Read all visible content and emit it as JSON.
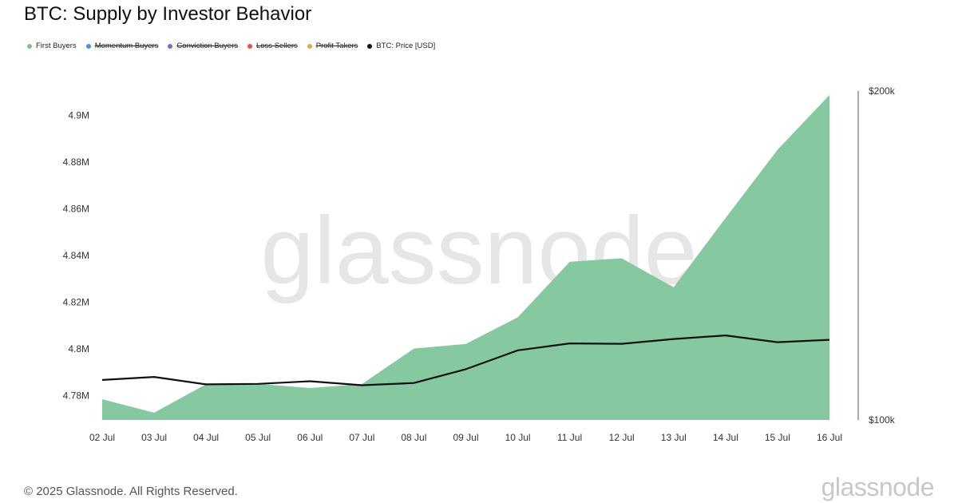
{
  "title": "BTC: Supply by Investor Behavior",
  "legend": [
    {
      "label": "First Buyers",
      "color": "#7cc28f",
      "hidden": false
    },
    {
      "label": "Momentum Buyers",
      "color": "#4a8fe0",
      "hidden": true
    },
    {
      "label": "Conviction Buyers",
      "color": "#7a68d8",
      "hidden": true
    },
    {
      "label": "Loss Sellers",
      "color": "#e0524a",
      "hidden": true
    },
    {
      "label": "Profit Takers",
      "color": "#e6a83a",
      "hidden": true
    },
    {
      "label": "BTC: Price [USD]",
      "color": "#111111",
      "hidden": false
    }
  ],
  "watermark": "glassnode",
  "footer": {
    "copyright": "© 2025 Glassnode. All Rights Reserved.",
    "logo": "glassnode"
  },
  "chart_data": {
    "type": "area",
    "categories": [
      "02 Jul",
      "03 Jul",
      "04 Jul",
      "05 Jul",
      "06 Jul",
      "07 Jul",
      "08 Jul",
      "09 Jul",
      "10 Jul",
      "11 Jul",
      "12 Jul",
      "13 Jul",
      "14 Jul",
      "15 Jul",
      "16 Jul"
    ],
    "series": [
      {
        "name": "First Buyers",
        "axis": "left",
        "type": "area",
        "color": "#86c8a0",
        "values": [
          4.7784,
          4.7726,
          4.7848,
          4.785,
          4.7832,
          4.7849,
          4.8001,
          4.8021,
          4.8135,
          4.8373,
          4.8388,
          4.8264,
          4.8561,
          4.8853,
          4.9088
        ]
      },
      {
        "name": "BTC: Price [USD]",
        "axis": "right",
        "type": "line",
        "color": "#111111",
        "values": [
          108800,
          109500,
          107800,
          107900,
          108500,
          107600,
          108100,
          111300,
          115800,
          117500,
          117400,
          118600,
          119500,
          117800,
          118400
        ]
      }
    ],
    "y_left": {
      "ticks": [
        "4.78M",
        "4.8M",
        "4.82M",
        "4.84M",
        "4.86M",
        "4.88M",
        "4.9M"
      ],
      "tick_values": [
        4.78,
        4.8,
        4.82,
        4.84,
        4.86,
        4.88,
        4.9
      ],
      "ylim": [
        4.7695,
        4.9105
      ]
    },
    "y_right": {
      "ticks": [
        "$100k",
        "$200k"
      ],
      "tick_values": [
        100000,
        200000
      ],
      "ylim": [
        100000,
        200000
      ],
      "scale": "log"
    },
    "grid": false,
    "legend_position": "top-left"
  }
}
